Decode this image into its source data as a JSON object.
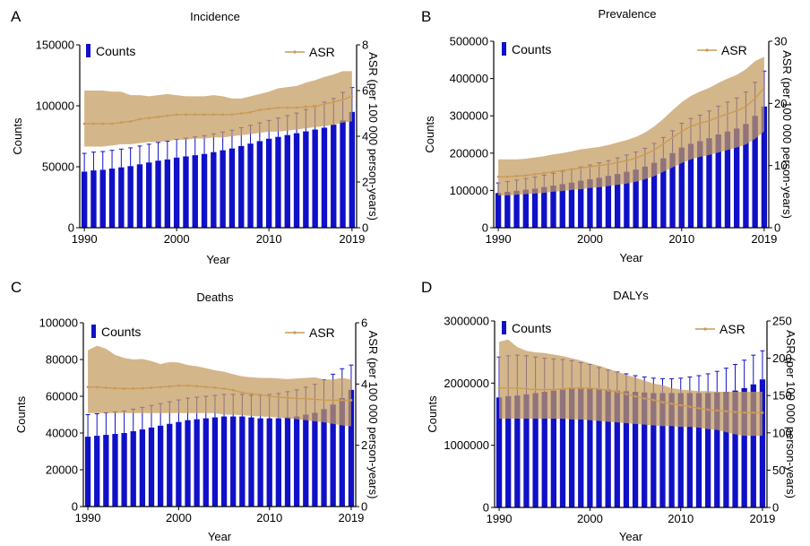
{
  "figure": {
    "panels": [
      {
        "letter": "A",
        "title": "Incidence"
      },
      {
        "letter": "B",
        "title": "Prevalence"
      },
      {
        "letter": "C",
        "title": "Deaths"
      },
      {
        "letter": "D",
        "title": "DALYs"
      }
    ],
    "colors": {
      "bar": "#1010c8",
      "asr_line": "#c99a55",
      "band": "#c49a5e"
    }
  },
  "chart_data": [
    {
      "type": "bar",
      "title": "Incidence",
      "xlabel": "Year",
      "ylabel": "Counts",
      "y2label": "ASR (per 100 000 person-years)",
      "legend": [
        "Counts",
        "ASR"
      ],
      "x": [
        1990,
        1991,
        1992,
        1993,
        1994,
        1995,
        1996,
        1997,
        1998,
        1999,
        2000,
        2001,
        2002,
        2003,
        2004,
        2005,
        2006,
        2007,
        2008,
        2009,
        2010,
        2011,
        2012,
        2013,
        2014,
        2015,
        2016,
        2017,
        2018,
        2019
      ],
      "xticks": [
        1990,
        2000,
        2010,
        2019
      ],
      "ylim": [
        0,
        150000
      ],
      "yticks": [
        0,
        50000,
        100000,
        150000
      ],
      "y2lim": [
        0,
        8
      ],
      "y2ticks": [
        0,
        2,
        4,
        6,
        8
      ],
      "counts": [
        46000,
        47000,
        47500,
        48500,
        49500,
        50500,
        52000,
        53500,
        55000,
        56000,
        57500,
        58500,
        59500,
        60500,
        62000,
        63500,
        65000,
        67000,
        69000,
        71000,
        73000,
        74500,
        76000,
        77500,
        79000,
        80500,
        82000,
        84500,
        88000,
        95000
      ],
      "counts_upper": [
        61000,
        62000,
        62500,
        63500,
        64500,
        65500,
        67000,
        68500,
        70000,
        71000,
        72500,
        73500,
        74500,
        75500,
        77000,
        78500,
        80000,
        82000,
        84000,
        86000,
        88000,
        90000,
        92000,
        94000,
        97000,
        100000,
        103000,
        106000,
        111000,
        115000
      ],
      "asr": [
        4.55,
        4.55,
        4.55,
        4.55,
        4.6,
        4.65,
        4.75,
        4.8,
        4.85,
        4.9,
        4.95,
        4.95,
        4.95,
        4.95,
        4.95,
        4.95,
        4.95,
        5.0,
        5.05,
        5.15,
        5.2,
        5.25,
        5.25,
        5.25,
        5.3,
        5.3,
        5.4,
        5.5,
        5.6,
        5.75
      ],
      "asr_lower": [
        3.55,
        3.55,
        3.55,
        3.6,
        3.65,
        3.65,
        3.7,
        3.75,
        3.75,
        3.8,
        3.85,
        3.85,
        3.9,
        3.9,
        3.95,
        3.95,
        4.0,
        4.05,
        4.1,
        4.15,
        4.2,
        4.2,
        4.25,
        4.3,
        4.35,
        4.4,
        4.45,
        4.5,
        4.6,
        4.65
      ],
      "asr_upper": [
        6.0,
        6.0,
        6.0,
        5.95,
        5.95,
        5.8,
        5.8,
        5.75,
        5.8,
        5.85,
        5.8,
        5.75,
        5.75,
        5.75,
        5.8,
        5.75,
        5.65,
        5.65,
        5.75,
        5.85,
        5.95,
        6.1,
        6.15,
        6.2,
        6.35,
        6.45,
        6.6,
        6.7,
        6.85,
        6.85
      ]
    },
    {
      "type": "bar",
      "title": "Prevalence",
      "xlabel": "Year",
      "ylabel": "Counts",
      "y2label": "ASR (per 100 000 person-years)",
      "legend": [
        "Counts",
        "ASR"
      ],
      "x": [
        1990,
        1991,
        1992,
        1993,
        1994,
        1995,
        1996,
        1997,
        1998,
        1999,
        2000,
        2001,
        2002,
        2003,
        2004,
        2005,
        2006,
        2007,
        2008,
        2009,
        2010,
        2011,
        2012,
        2013,
        2014,
        2015,
        2016,
        2017,
        2018,
        2019
      ],
      "xticks": [
        1990,
        2000,
        2010,
        2019
      ],
      "ylim": [
        0,
        500000
      ],
      "yticks": [
        0,
        100000,
        200000,
        300000,
        400000,
        500000
      ],
      "y2lim": [
        0,
        30
      ],
      "y2ticks": [
        0,
        10,
        20,
        30
      ],
      "counts": [
        93000,
        96000,
        99000,
        102000,
        105000,
        109000,
        113000,
        117000,
        121000,
        126000,
        130000,
        134000,
        139000,
        144000,
        150000,
        156000,
        164000,
        174000,
        186000,
        200000,
        215000,
        225000,
        232000,
        240000,
        250000,
        258000,
        266000,
        278000,
        300000,
        325000
      ],
      "counts_upper": [
        120000,
        124000,
        128000,
        132000,
        136000,
        141000,
        146000,
        151000,
        157000,
        163000,
        168000,
        174000,
        180000,
        187000,
        195000,
        203000,
        213000,
        226000,
        242000,
        260000,
        280000,
        293000,
        302000,
        313000,
        326000,
        337000,
        348000,
        364000,
        390000,
        420000
      ],
      "asr": [
        8.2,
        8.2,
        8.3,
        8.4,
        8.6,
        8.8,
        9.0,
        9.2,
        9.4,
        9.6,
        9.8,
        10.0,
        10.2,
        10.5,
        10.8,
        11.2,
        11.8,
        12.5,
        13.5,
        14.5,
        15.5,
        16.3,
        16.8,
        17.2,
        17.8,
        18.3,
        18.8,
        19.5,
        20.8,
        22.5
      ],
      "asr_lower": [
        5.2,
        5.2,
        5.3,
        5.4,
        5.5,
        5.6,
        5.8,
        5.9,
        6.1,
        6.2,
        6.4,
        6.5,
        6.7,
        6.9,
        7.1,
        7.4,
        7.8,
        8.3,
        9.0,
        9.7,
        10.4,
        11.0,
        11.4,
        11.7,
        12.1,
        12.5,
        12.9,
        13.4,
        14.3,
        15.5
      ],
      "asr_upper": [
        11.0,
        11.0,
        11.0,
        11.1,
        11.3,
        11.5,
        11.8,
        12.0,
        12.3,
        12.6,
        12.8,
        13.0,
        13.3,
        13.7,
        14.1,
        14.6,
        15.3,
        16.3,
        17.5,
        18.9,
        20.2,
        21.2,
        21.9,
        22.5,
        23.3,
        24.0,
        24.6,
        25.5,
        26.8,
        27.5
      ]
    },
    {
      "type": "bar",
      "title": "Deaths",
      "xlabel": "Year",
      "ylabel": "Counts",
      "y2label": "ASR (per 100 000 person-years)",
      "legend": [
        "Counts",
        "ASR"
      ],
      "x": [
        1990,
        1991,
        1992,
        1993,
        1994,
        1995,
        1996,
        1997,
        1998,
        1999,
        2000,
        2001,
        2002,
        2003,
        2004,
        2005,
        2006,
        2007,
        2008,
        2009,
        2010,
        2011,
        2012,
        2013,
        2014,
        2015,
        2016,
        2017,
        2018,
        2019
      ],
      "xticks": [
        1990,
        2000,
        2010,
        2019
      ],
      "ylim": [
        0,
        100000
      ],
      "yticks": [
        0,
        20000,
        40000,
        60000,
        80000,
        100000
      ],
      "y2lim": [
        0,
        6
      ],
      "y2ticks": [
        0,
        2,
        4,
        6
      ],
      "counts": [
        38000,
        38500,
        39000,
        39500,
        40000,
        41000,
        42000,
        43000,
        44000,
        45000,
        46000,
        47000,
        47500,
        48000,
        48500,
        49000,
        49000,
        49000,
        48500,
        48000,
        48000,
        48000,
        48500,
        49000,
        50000,
        51000,
        53000,
        55500,
        59000,
        63500
      ],
      "counts_upper": [
        50000,
        50500,
        51000,
        51500,
        52000,
        53000,
        54000,
        55000,
        56000,
        57000,
        58000,
        59000,
        59500,
        60000,
        60500,
        61000,
        61000,
        61000,
        60500,
        60500,
        61000,
        61500,
        62500,
        63500,
        65000,
        66500,
        69000,
        72000,
        75000,
        77000
      ],
      "asr": [
        3.9,
        3.9,
        3.88,
        3.86,
        3.85,
        3.85,
        3.86,
        3.88,
        3.9,
        3.92,
        3.95,
        3.95,
        3.93,
        3.9,
        3.88,
        3.85,
        3.8,
        3.72,
        3.68,
        3.65,
        3.6,
        3.57,
        3.55,
        3.53,
        3.52,
        3.5,
        3.48,
        3.47,
        3.47,
        3.47
      ],
      "asr_lower": [
        3.05,
        3.05,
        3.05,
        3.05,
        3.05,
        3.05,
        3.05,
        3.05,
        3.05,
        3.05,
        3.05,
        3.05,
        3.05,
        3.05,
        3.05,
        3.0,
        3.0,
        2.98,
        2.96,
        2.94,
        2.93,
        2.9,
        2.88,
        2.85,
        2.82,
        2.78,
        2.75,
        2.7,
        2.65,
        2.62
      ],
      "asr_upper": [
        5.1,
        5.25,
        5.15,
        4.95,
        4.85,
        4.8,
        4.82,
        4.75,
        4.65,
        4.72,
        4.7,
        4.62,
        4.58,
        4.52,
        4.45,
        4.4,
        4.32,
        4.25,
        4.22,
        4.2,
        4.2,
        4.18,
        4.16,
        4.18,
        4.2,
        4.22,
        4.15,
        4.15,
        4.2,
        4.15
      ]
    },
    {
      "type": "bar",
      "title": "DALYs",
      "xlabel": "Year",
      "ylabel": "Counts",
      "y2label": "ASR (per 100 000 person-years)",
      "legend": [
        "Counts",
        "ASR"
      ],
      "x": [
        1990,
        1991,
        1992,
        1993,
        1994,
        1995,
        1996,
        1997,
        1998,
        1999,
        2000,
        2001,
        2002,
        2003,
        2004,
        2005,
        2006,
        2007,
        2008,
        2009,
        2010,
        2011,
        2012,
        2013,
        2014,
        2015,
        2016,
        2017,
        2018,
        2019
      ],
      "xticks": [
        1990,
        2000,
        2010,
        2019
      ],
      "ylim": [
        0,
        3000000
      ],
      "yticks": [
        0,
        1000000,
        2000000,
        3000000
      ],
      "y2lim": [
        0,
        250
      ],
      "y2ticks": [
        0,
        50,
        100,
        150,
        200,
        250
      ],
      "counts": [
        1770000,
        1790000,
        1800000,
        1820000,
        1840000,
        1860000,
        1880000,
        1900000,
        1920000,
        1930000,
        1920000,
        1910000,
        1900000,
        1880000,
        1870000,
        1860000,
        1850000,
        1840000,
        1840000,
        1840000,
        1840000,
        1840000,
        1840000,
        1840000,
        1850000,
        1860000,
        1880000,
        1920000,
        1980000,
        2060000
      ],
      "counts_upper": [
        2420000,
        2440000,
        2450000,
        2440000,
        2420000,
        2400000,
        2390000,
        2380000,
        2360000,
        2330000,
        2300000,
        2250000,
        2210000,
        2180000,
        2150000,
        2120000,
        2100000,
        2080000,
        2070000,
        2070000,
        2080000,
        2100000,
        2120000,
        2150000,
        2190000,
        2240000,
        2300000,
        2370000,
        2450000,
        2520000
      ],
      "asr": [
        160,
        160,
        160,
        159,
        158,
        158,
        158,
        159,
        160,
        160,
        160,
        159,
        157,
        155,
        152,
        149,
        146,
        144,
        141,
        139,
        137,
        135,
        133,
        131,
        130,
        129,
        128,
        127,
        127,
        127
      ],
      "asr_lower": [
        119,
        119,
        119,
        119,
        119,
        119,
        119,
        119,
        118,
        118,
        117,
        116,
        115,
        114,
        113,
        112,
        111,
        110,
        109,
        109,
        108,
        108,
        107,
        105,
        104,
        101,
        98,
        96,
        96,
        96
      ],
      "asr_upper": [
        222,
        225,
        215,
        210,
        208,
        207,
        205,
        203,
        200,
        197,
        193,
        190,
        186,
        182,
        178,
        174,
        170,
        166,
        164,
        160,
        158,
        157,
        156,
        156,
        155,
        155,
        155,
        155,
        155,
        155
      ]
    }
  ]
}
